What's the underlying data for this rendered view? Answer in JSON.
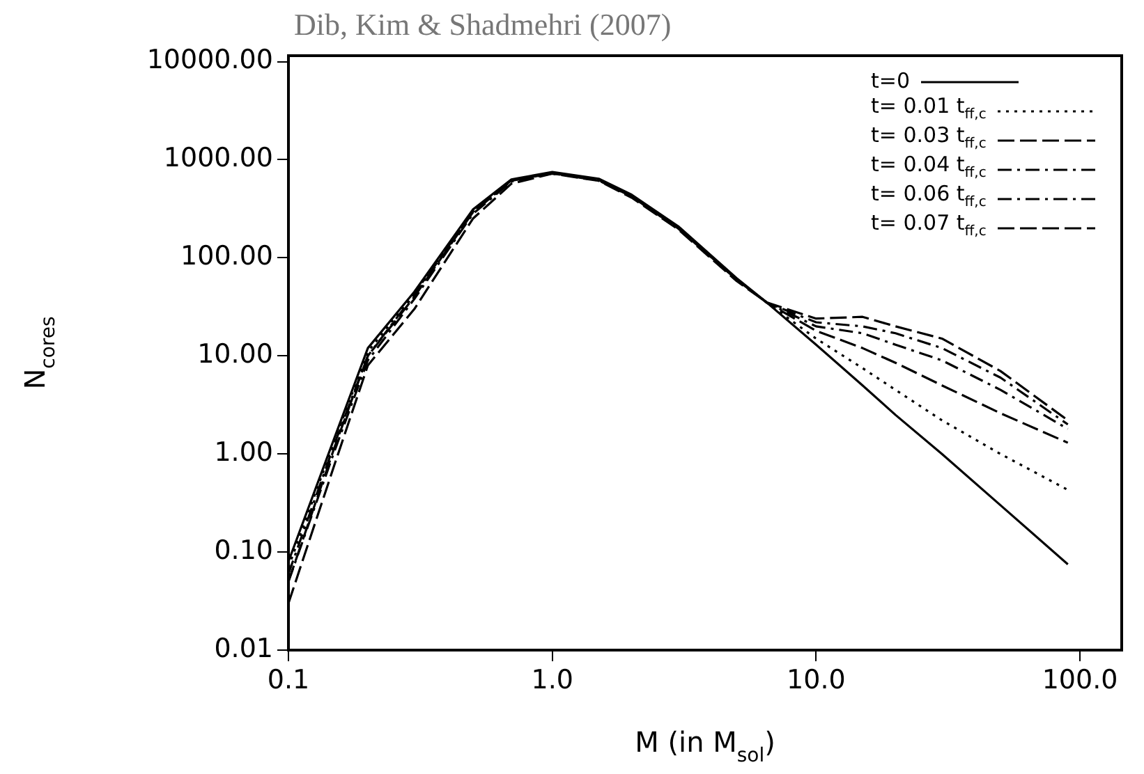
{
  "chart_data": {
    "type": "line",
    "title": "Dib, Kim & Shadmehri (2007)",
    "xlabel": "M (in M$_{sol}$)",
    "ylabel": "N$_{cores}$",
    "x": [
      0.1,
      0.15,
      0.2,
      0.3,
      0.5,
      0.7,
      1,
      1.5,
      2,
      3,
      5,
      6.5,
      10,
      15,
      20,
      30,
      50,
      90
    ],
    "log": "xy",
    "xlim": [
      0.1,
      144
    ],
    "ylim": [
      0.01,
      11500
    ],
    "xticks": [
      {
        "value": 0.1,
        "label": "0.1"
      },
      {
        "value": 1,
        "label": "1.0"
      },
      {
        "value": 10,
        "label": "10.0"
      },
      {
        "value": 100,
        "label": "100.0"
      }
    ],
    "yticks": [
      {
        "value": 0.01,
        "label": "0.01"
      },
      {
        "value": 0.1,
        "label": "0.10"
      },
      {
        "value": 1,
        "label": "1.00"
      },
      {
        "value": 10,
        "label": "10.00"
      },
      {
        "value": 100,
        "label": "100.00"
      },
      {
        "value": 1000,
        "label": "1000.00"
      },
      {
        "value": 10000,
        "label": "10000.00"
      }
    ],
    "legend": "top right",
    "marker": "none",
    "series": [
      {
        "name": "t=0",
        "color": "#000000",
        "line_style": "solid",
        "values": [
          0.08,
          1.5,
          12,
          45,
          310,
          630,
          750,
          640,
          440,
          210,
          62,
          35,
          13,
          5,
          2.5,
          1.0,
          0.3,
          0.075
        ]
      },
      {
        "name": "t= 0.01 t$_{ff,c}$",
        "color": "#000000",
        "line_style": "dotted",
        "values": [
          0.07,
          1.4,
          11,
          43,
          300,
          620,
          740,
          630,
          430,
          205,
          60,
          35,
          15,
          7.5,
          4.5,
          2.2,
          1.0,
          0.43
        ]
      },
      {
        "name": "t= 0.03 t$_{ff,c}$",
        "color": "#000000",
        "line_style": "dashed",
        "values": [
          0.05,
          1.2,
          10,
          40,
          290,
          610,
          730,
          620,
          420,
          200,
          60,
          35,
          18,
          12,
          8.5,
          5,
          2.6,
          1.3
        ]
      },
      {
        "name": "t= 0.04 t$_{ff,c}$",
        "color": "#000000",
        "line_style": "dashdot",
        "values": [
          0.06,
          1.3,
          10,
          42,
          295,
          615,
          735,
          625,
          425,
          205,
          60,
          35,
          20,
          17,
          13,
          9,
          4.5,
          1.8
        ]
      },
      {
        "name": "t= 0.06 t$_{ff,c}$",
        "color": "#000000",
        "line_style": "dashdot",
        "values": [
          0.05,
          1.1,
          9,
          38,
          280,
          600,
          725,
          615,
          420,
          200,
          60,
          35,
          22,
          20,
          17,
          12,
          6,
          2
        ]
      },
      {
        "name": "t= 0.07 t$_{ff,c}$",
        "color": "#000000",
        "line_style": "dashed",
        "values": [
          0.03,
          0.8,
          8,
          30,
          250,
          570,
          720,
          610,
          410,
          195,
          58,
          35,
          24,
          25,
          20,
          15,
          7,
          2.2
        ]
      }
    ]
  }
}
